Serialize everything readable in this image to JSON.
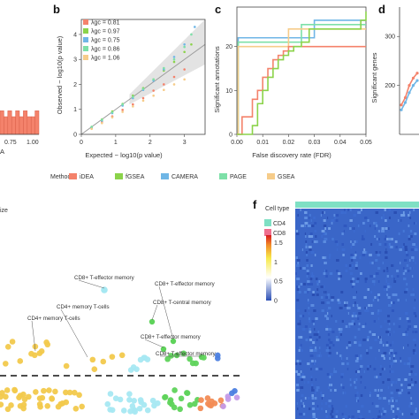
{
  "panel_labels": [
    "b",
    "c",
    "d",
    "f"
  ],
  "colors": {
    "iDEA": "#f4826b",
    "fGSEA": "#8bd34a",
    "CAMERA": "#6fb6e6",
    "PAGE": "#7de0a8",
    "GSEA": "#f6cc8a",
    "cd4": "#7fe0c4",
    "cd8": "#ef6f8f"
  },
  "method_legend": {
    "title": "Method",
    "items": [
      "iDEA",
      "fGSEA",
      "CAMERA",
      "PAGE",
      "GSEA"
    ]
  },
  "panel_e_fragment": {
    "size_label": "ize"
  },
  "chart_data": [
    {
      "panel": "a",
      "type": "bar",
      "xlabel": "A",
      "xticks": [
        "0.75",
        "1.00"
      ],
      "x": [
        0.55,
        0.6,
        0.65,
        0.7,
        0.75,
        0.8,
        0.85,
        0.9,
        0.95,
        1.0
      ],
      "values": [
        4,
        3,
        4,
        3,
        4,
        3,
        4,
        3,
        3,
        4
      ]
    },
    {
      "panel": "b",
      "type": "scatter",
      "xlabel": "Expected − log10(p value)",
      "ylabel": "Observed − log10(p value)",
      "xlim": [
        0,
        3.6
      ],
      "ylim": [
        0,
        4.6
      ],
      "xticks": [
        "0",
        "1",
        "2",
        "3"
      ],
      "yticks": [
        "0",
        "1",
        "2",
        "3",
        "4"
      ],
      "legend": [
        "λgc = 0.81",
        "λgc = 0.97",
        "λgc = 0.75",
        "λgc = 0.86",
        "λgc = 1.06"
      ],
      "series": [
        {
          "name": "λgc = 0.81",
          "x": [
            0.3,
            0.6,
            0.9,
            1.2,
            1.5,
            1.8,
            2.1,
            2.4,
            2.7,
            3.0
          ],
          "y": [
            0.25,
            0.5,
            0.72,
            0.98,
            1.2,
            1.45,
            1.75,
            2.0,
            2.3,
            2.6
          ]
        },
        {
          "name": "λgc = 0.97",
          "x": [
            0.3,
            0.6,
            0.9,
            1.2,
            1.5,
            1.8,
            2.1,
            2.4,
            2.7,
            3.0,
            3.2
          ],
          "y": [
            0.3,
            0.6,
            0.92,
            1.22,
            1.55,
            1.85,
            2.2,
            2.55,
            2.9,
            3.3,
            3.6
          ]
        },
        {
          "name": "λgc = 0.75",
          "x": [
            0.3,
            0.6,
            0.9,
            1.2,
            1.5,
            1.8,
            2.1,
            2.4,
            2.7,
            3.0,
            3.3
          ],
          "y": [
            0.28,
            0.55,
            0.85,
            1.15,
            1.45,
            1.78,
            2.15,
            2.6,
            3.1,
            3.6,
            4.3
          ]
        },
        {
          "name": "λgc = 0.86",
          "x": [
            0.3,
            0.6,
            0.9,
            1.2,
            1.5,
            1.8,
            2.1,
            2.4,
            2.7,
            3.0,
            3.2
          ],
          "y": [
            0.3,
            0.58,
            0.88,
            1.2,
            1.5,
            1.82,
            2.2,
            2.65,
            3.0,
            3.5,
            4.0
          ]
        },
        {
          "name": "λgc = 1.06",
          "x": [
            0.3,
            0.6,
            0.9,
            1.2,
            1.5,
            1.8,
            2.1,
            2.4,
            2.7,
            3.0
          ],
          "y": [
            0.22,
            0.45,
            0.68,
            0.9,
            1.12,
            1.35,
            1.55,
            1.78,
            2.0,
            2.2
          ]
        }
      ]
    },
    {
      "panel": "c",
      "type": "line",
      "xlabel": "False discovery rate (FDR)",
      "ylabel": "Significant annotations",
      "xlim": [
        0,
        0.05
      ],
      "ylim": [
        0,
        29
      ],
      "xticks": [
        "0.00",
        "0.01",
        "0.02",
        "0.03",
        "0.04",
        "0.05"
      ],
      "yticks": [
        "0",
        "10",
        "20"
      ],
      "series": [
        {
          "name": "iDEA",
          "x": [
            0.0,
            0.002,
            0.005,
            0.006,
            0.008,
            0.01,
            0.012,
            0.014,
            0.016,
            0.018,
            0.02,
            0.05
          ],
          "y": [
            0,
            4,
            4,
            8,
            10,
            13,
            15,
            17,
            18,
            19,
            20,
            20
          ]
        },
        {
          "name": "fGSEA",
          "x": [
            0.0,
            0.004,
            0.006,
            0.008,
            0.01,
            0.012,
            0.014,
            0.016,
            0.018,
            0.02,
            0.022,
            0.025,
            0.028,
            0.048,
            0.05
          ],
          "y": [
            0,
            0,
            2,
            7,
            10,
            13,
            15,
            17,
            18,
            19,
            20,
            21,
            24,
            26,
            28
          ]
        },
        {
          "name": "CAMERA",
          "x": [
            0.0,
            0.0005,
            0.03,
            0.03,
            0.05
          ],
          "y": [
            0,
            22,
            22,
            26,
            26
          ]
        },
        {
          "name": "PAGE",
          "x": [
            0.0,
            0.0005,
            0.025,
            0.025,
            0.05
          ],
          "y": [
            0,
            21,
            21,
            25,
            25
          ]
        },
        {
          "name": "GSEA",
          "x": [
            0.0,
            0.0005,
            0.02,
            0.02,
            0.05
          ],
          "y": [
            0,
            20,
            20,
            24,
            24
          ]
        }
      ]
    },
    {
      "panel": "d",
      "type": "line",
      "ylabel": "Significant genes",
      "yticks": [
        "200",
        "300"
      ],
      "series": [
        {
          "name": "iDEA",
          "x": [
            0,
            1,
            2,
            3,
            4
          ],
          "y": [
            160,
            175,
            200,
            215,
            225
          ]
        },
        {
          "name": "CAMERA",
          "x": [
            0,
            1,
            2,
            3,
            4
          ],
          "y": [
            150,
            165,
            185,
            200,
            210
          ]
        }
      ]
    },
    {
      "panel": "e",
      "type": "scatter",
      "annotations": [
        "CD8+ T-effector memory",
        "CD8+ T-effector memory",
        "CD4+ memory T-cells",
        "CD4+ memory T-cells",
        "CD8+ T-central memory",
        "CD8+ T-effector memory",
        "CD8+ T-effector memory"
      ],
      "categories": [
        "CD4 memory",
        "CD8 group",
        "CD8 T-effector",
        "other",
        "bottom-left",
        "bottom-right"
      ],
      "threshold": "dashed line"
    },
    {
      "panel": "f",
      "type": "heatmap",
      "legend_title": "Cell type",
      "legend_items": [
        "CD4",
        "CD8"
      ],
      "colorbar_ticks": [
        "1.5",
        "1",
        "0.5",
        "0"
      ],
      "range": [
        0,
        1.7
      ]
    }
  ]
}
